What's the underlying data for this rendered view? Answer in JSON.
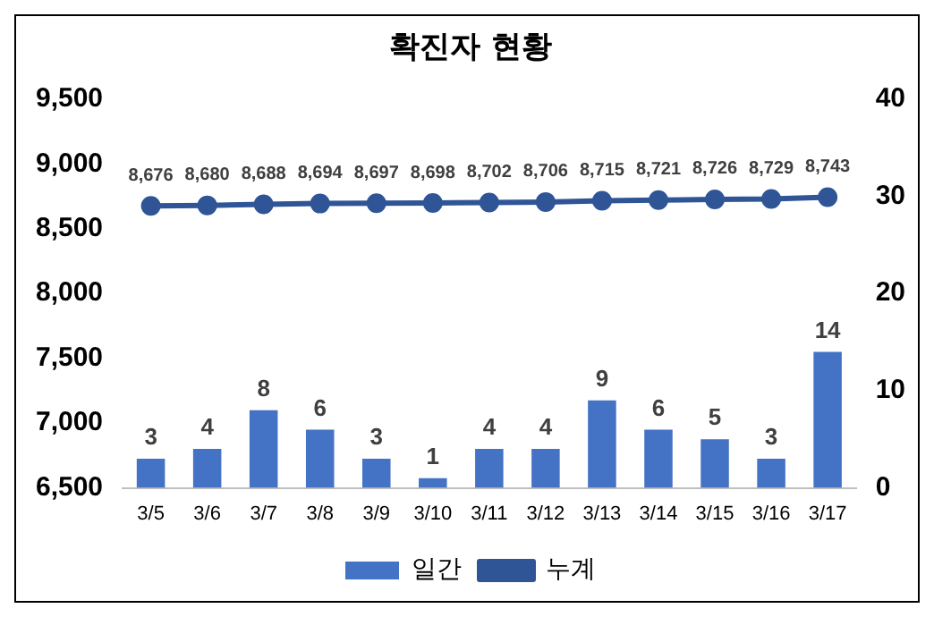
{
  "chart_data": {
    "type": "bar",
    "title": "확진자 현황",
    "categories": [
      "3/5",
      "3/6",
      "3/7",
      "3/8",
      "3/9",
      "3/10",
      "3/11",
      "3/12",
      "3/13",
      "3/14",
      "3/15",
      "3/16",
      "3/17"
    ],
    "series": [
      {
        "name": "일간",
        "axis": "y2",
        "color": "#4472c4",
        "values": [
          3,
          4,
          8,
          6,
          3,
          1,
          4,
          4,
          9,
          6,
          5,
          3,
          14
        ]
      },
      {
        "name": "누계",
        "type": "line",
        "axis": "y",
        "color": "#2f5597",
        "values": [
          8676,
          8680,
          8688,
          8694,
          8697,
          8698,
          8702,
          8706,
          8715,
          8721,
          8726,
          8729,
          8743
        ],
        "value_labels": [
          "8,676",
          "8,680",
          "8,688",
          "8,694",
          "8,697",
          "8,698",
          "8,702",
          "8,706",
          "8,715",
          "8,721",
          "8,726",
          "8,729",
          "8,743"
        ]
      }
    ],
    "ylim": [
      6500,
      9500
    ],
    "yticks": [
      {
        "value": 6500,
        "label": "6,500"
      },
      {
        "value": 7000,
        "label": "7,000"
      },
      {
        "value": 7500,
        "label": "7,500"
      },
      {
        "value": 8000,
        "label": "8,000"
      },
      {
        "value": 8500,
        "label": "8,500"
      },
      {
        "value": 9000,
        "label": "9,000"
      },
      {
        "value": 9500,
        "label": "9,500"
      }
    ],
    "y2lim": [
      0,
      40
    ],
    "y2ticks": [
      0,
      10,
      20,
      30,
      40
    ],
    "data_labels": true,
    "grid": false,
    "legend": "bottom",
    "marker": "circle"
  }
}
